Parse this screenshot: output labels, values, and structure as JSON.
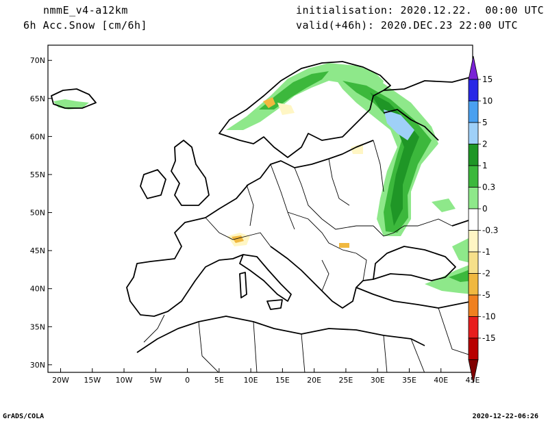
{
  "header": {
    "model": "nmmE_v4-a12km",
    "field": "6h Acc.Snow [cm/6h]",
    "init": "initialisation: 2020.12.22.  00:00 UTC",
    "valid": "valid(+46h): 2020.DEC.23 22:00 UTC"
  },
  "footer": {
    "left": "GrADS/COLA",
    "right": "2020-12-22-06:26"
  },
  "map": {
    "lon_range": [
      -22,
      45
    ],
    "lat_range": [
      29,
      72
    ],
    "lon_ticks": [
      "20W",
      "15W",
      "10W",
      "5W",
      "0",
      "5E",
      "10E",
      "15E",
      "20E",
      "25E",
      "30E",
      "35E",
      "40E",
      "45E"
    ],
    "lat_ticks": [
      "30N",
      "35N",
      "40N",
      "45N",
      "50N",
      "55N",
      "60N",
      "65N",
      "70N"
    ]
  },
  "colorbar": {
    "labels": [
      "15",
      "10",
      "5",
      "2",
      "1",
      "0.3",
      "0",
      "-0.3",
      "-1",
      "-2",
      "-5",
      "-10",
      "-15"
    ],
    "colors": [
      "#7a22d6",
      "#2828e6",
      "#4aa0f0",
      "#9fd0f8",
      "#1f9626",
      "#3cb83c",
      "#8ee88a",
      "#ffffff",
      "#fff6c4",
      "#f6e08a",
      "#f0b840",
      "#f08020",
      "#e81e1e",
      "#b80000",
      "#800000"
    ]
  },
  "snow_colors": {
    "light_green": "#8ee88a",
    "mid_green": "#3cb83c",
    "dark_green": "#1f9626",
    "light_blue": "#9fd0f8",
    "cream": "#fff6c4",
    "orange": "#f0b840"
  }
}
